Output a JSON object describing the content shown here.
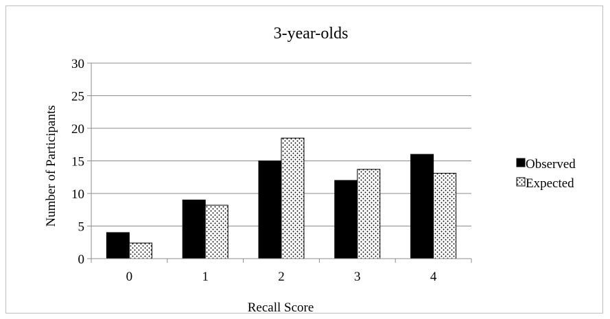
{
  "chart_data": {
    "type": "bar",
    "title": "3-year-olds",
    "xlabel": "Recall Score",
    "ylabel": "Number of Participants",
    "categories": [
      "0",
      "1",
      "2",
      "3",
      "4"
    ],
    "ylim": [
      0,
      30
    ],
    "yticks": [
      0,
      5,
      10,
      15,
      20,
      25,
      30
    ],
    "grid": true,
    "legend_position": "right",
    "series": [
      {
        "name": "Observed",
        "values": [
          4,
          9,
          15,
          12,
          16
        ],
        "fill": "solid",
        "color": "#000000"
      },
      {
        "name": "Expected",
        "values": [
          2.4,
          8.2,
          18.5,
          13.7,
          13.1
        ],
        "fill": "dotted",
        "color": "#000000"
      }
    ]
  }
}
